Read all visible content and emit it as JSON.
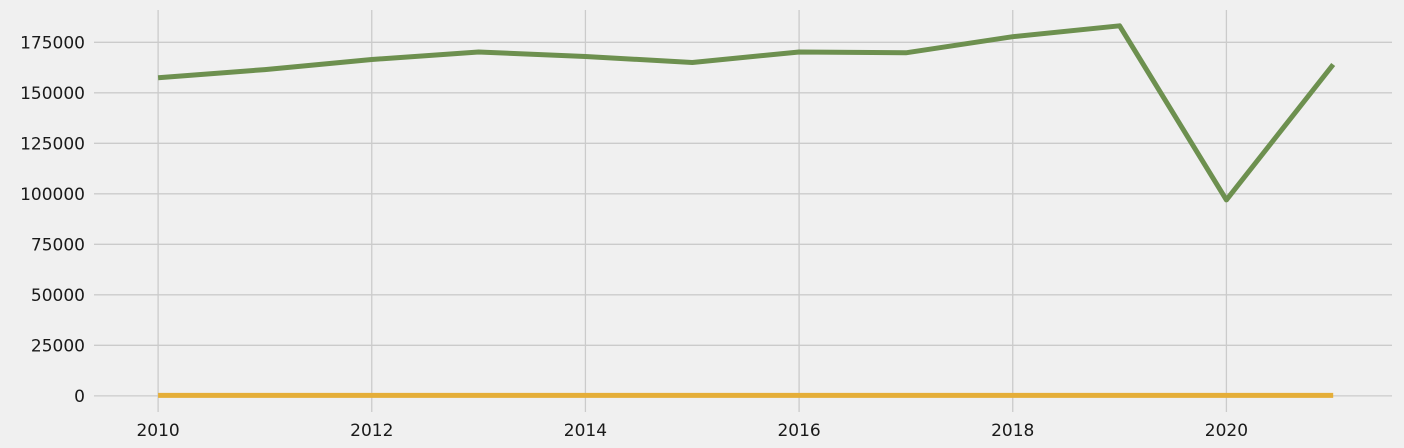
{
  "chart_data": {
    "type": "line",
    "title": "",
    "xlabel": "",
    "ylabel": "",
    "x": [
      2010,
      2011,
      2012,
      2013,
      2014,
      2015,
      2016,
      2017,
      2018,
      2019,
      2020,
      2021
    ],
    "xlim": [
      2009.4,
      2021.55
    ],
    "ylim": [
      -8000,
      191000
    ],
    "xticks": [
      2010,
      2012,
      2014,
      2016,
      2018,
      2020
    ],
    "yticks": [
      0,
      25000,
      50000,
      75000,
      100000,
      125000,
      150000,
      175000
    ],
    "grid": true,
    "legend": "none",
    "series": [
      {
        "color": "#6d904f",
        "values": [
          157500,
          161500,
          166500,
          170200,
          168000,
          165000,
          170200,
          169800,
          177800,
          183200,
          97000,
          164000
        ]
      },
      {
        "color": "#e5ae38",
        "values": [
          200,
          200,
          200,
          200,
          200,
          200,
          200,
          200,
          200,
          200,
          200,
          200
        ]
      }
    ]
  }
}
